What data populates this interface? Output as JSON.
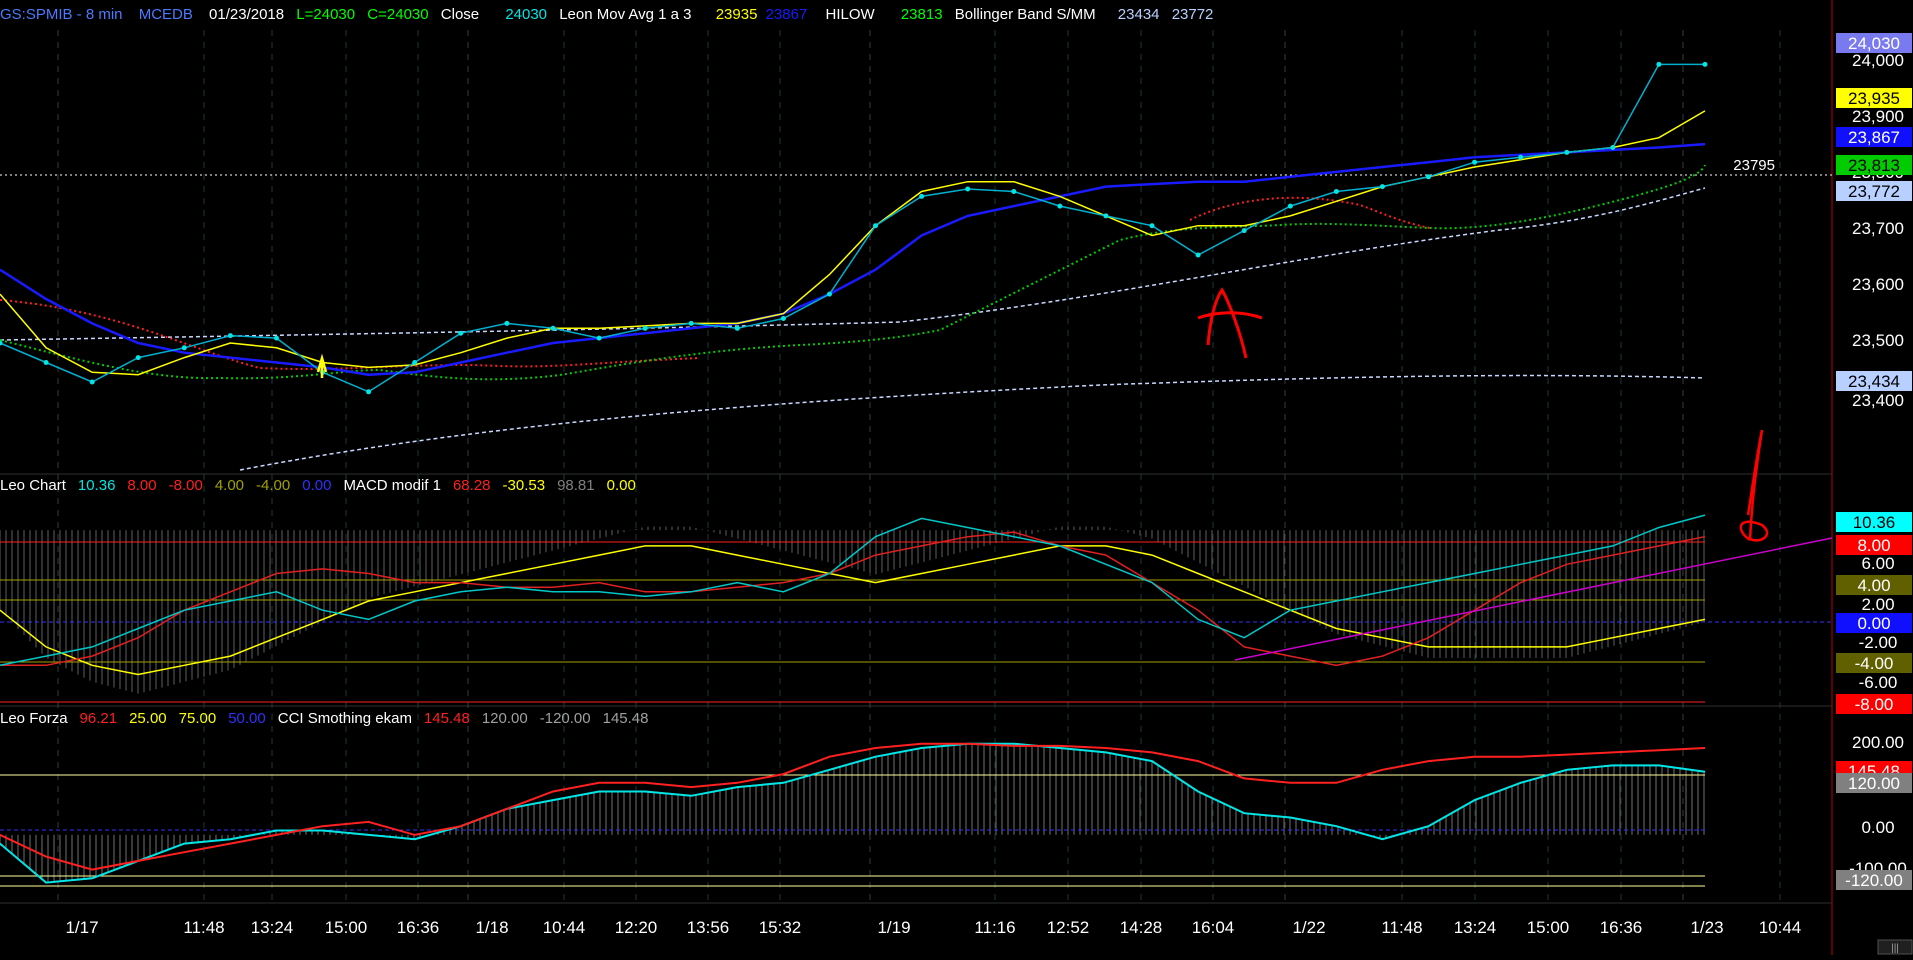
{
  "header": {
    "symbol": "GS:SPMIB - 8 min",
    "source": "MCEDB",
    "date": "01/23/2018",
    "low_label": "L=24030",
    "close_label": "C=24030",
    "close_word": "Close",
    "close_value": "24030",
    "mov_avg_name": "Leon Mov Avg 1 a 3",
    "mov_avg_v1": "23935",
    "mov_avg_v2": "23867",
    "hilow_name": "HILOW",
    "hilow_value": "23813",
    "bb_name": "Bollinger Band S/MM",
    "bb_v1": "23434",
    "bb_v2": "23772"
  },
  "price_axis": {
    "ticks": [
      "24,000",
      "23,900",
      "23,800",
      "23,700",
      "23,600",
      "23,500",
      "23,400"
    ],
    "badges": [
      {
        "text": "24,030",
        "bg": "#7a7af0",
        "fg": "#ffffff"
      },
      {
        "text": "23,935",
        "bg": "#ffff00",
        "fg": "#000000"
      },
      {
        "text": "23,867",
        "bg": "#1010ff",
        "fg": "#ffffff"
      },
      {
        "text": "23,813",
        "bg": "#00cc00",
        "fg": "#000000"
      },
      {
        "text": "23,772",
        "bg": "#b8d0ff",
        "fg": "#000000"
      },
      {
        "text": "23,434",
        "bg": "#b8d0ff",
        "fg": "#000000"
      }
    ],
    "hline_label": "23795"
  },
  "macd_panel": {
    "legend": [
      {
        "text": "Leo Chart",
        "color": "#ffffff"
      },
      {
        "text": "10.36",
        "color": "#00e5e5"
      },
      {
        "text": "8.00",
        "color": "#ff2020"
      },
      {
        "text": "-8.00",
        "color": "#ff2020"
      },
      {
        "text": "4.00",
        "color": "#a0a000"
      },
      {
        "text": "-4.00",
        "color": "#a0a000"
      },
      {
        "text": "0.00",
        "color": "#3030ff"
      },
      {
        "text": "MACD modif 1",
        "color": "#ffffff"
      },
      {
        "text": "68.28",
        "color": "#ff2020"
      },
      {
        "text": "-30.53",
        "color": "#ffff00"
      },
      {
        "text": "98.81",
        "color": "#808080"
      },
      {
        "text": "0.00",
        "color": "#ffff00"
      }
    ],
    "ticks": [
      "6.00",
      "2.00",
      "-2.00",
      "-6.00"
    ],
    "badges": [
      {
        "text": "10.36",
        "bg": "#00ffff",
        "fg": "#000000"
      },
      {
        "text": "8.00",
        "bg": "#ff0000",
        "fg": "#ffffff"
      },
      {
        "text": "4.00",
        "bg": "#606000",
        "fg": "#ffffff"
      },
      {
        "text": "0.00",
        "bg": "#1010ff",
        "fg": "#ffffff"
      },
      {
        "text": "-4.00",
        "bg": "#606000",
        "fg": "#ffffff"
      },
      {
        "text": "-8.00",
        "bg": "#ff0000",
        "fg": "#ffffff"
      }
    ]
  },
  "cci_panel": {
    "legend": [
      {
        "text": "Leo Forza",
        "color": "#ffffff"
      },
      {
        "text": "96.21",
        "color": "#ff2020"
      },
      {
        "text": "25.00",
        "color": "#ffff00"
      },
      {
        "text": "75.00",
        "color": "#ffff00"
      },
      {
        "text": "50.00",
        "color": "#3030ff"
      },
      {
        "text": "CCI Smothing ekam",
        "color": "#ffffff"
      },
      {
        "text": "145.48",
        "color": "#ff2020"
      },
      {
        "text": "120.00",
        "color": "#a0a0a0"
      },
      {
        "text": "-120.00",
        "color": "#a0a0a0"
      },
      {
        "text": "145.48",
        "color": "#a0a0a0"
      }
    ],
    "ticks": [
      "200.00",
      "0.00",
      "-100.00"
    ],
    "badges": [
      {
        "text": "145.48",
        "bg": "#ff0000",
        "fg": "#ffffff"
      },
      {
        "text": "120.00",
        "bg": "#808080",
        "fg": "#ffffff"
      },
      {
        "text": "-120.00",
        "bg": "#808080",
        "fg": "#ffffff"
      }
    ]
  },
  "time_axis": {
    "labels": [
      "1/17",
      "11:48",
      "13:24",
      "15:00",
      "16:36",
      "1/18",
      "10:44",
      "12:20",
      "13:56",
      "15:32",
      "1/19",
      "11:16",
      "12:52",
      "14:28",
      "16:04",
      "1/22",
      "11:48",
      "13:24",
      "15:00",
      "16:36",
      "1/23",
      "10:44"
    ]
  },
  "annotation": {
    "text": "A"
  },
  "colors": {
    "close": "#00e5e5",
    "ma_fast": "#ffff00",
    "ma_slow": "#1a1aff",
    "hilow": "#00cc00",
    "red_dots": "#ff2020",
    "bollinger": "#c8d8ff",
    "macd_red": "#e02020",
    "trendline": "#cc00cc"
  },
  "chart_data": [
    {
      "type": "line",
      "panel": "price",
      "title": "",
      "x": [
        "1/17 09:00",
        "1/17 10:00",
        "1/17 11:00",
        "1/17 12:00",
        "1/17 13:00",
        "1/17 14:00",
        "1/17 15:00",
        "1/17 16:00",
        "1/17 17:00",
        "1/18 09:00",
        "1/18 10:00",
        "1/18 11:00",
        "1/18 12:00",
        "1/18 13:00",
        "1/18 14:00",
        "1/18 15:00",
        "1/18 16:00",
        "1/18 17:00",
        "1/19 09:00",
        "1/19 10:00",
        "1/19 11:00",
        "1/19 12:00",
        "1/19 13:00",
        "1/19 14:00",
        "1/19 15:00",
        "1/19 16:00",
        "1/19 17:00",
        "1/22 09:00",
        "1/22 10:00",
        "1/22 11:00",
        "1/22 12:00",
        "1/22 13:00",
        "1/22 14:00",
        "1/22 15:00",
        "1/22 16:00",
        "1/22 17:00",
        "1/23 09:00",
        "1/23 09:30"
      ],
      "ylim": [
        23200,
        24080
      ],
      "series": [
        {
          "name": "Close",
          "values": [
            23460,
            23420,
            23380,
            23430,
            23450,
            23475,
            23470,
            23400,
            23360,
            23420,
            23480,
            23500,
            23490,
            23470,
            23490,
            23500,
            23490,
            23510,
            23560,
            23700,
            23760,
            23775,
            23770,
            23740,
            23720,
            23700,
            23640,
            23690,
            23740,
            23770,
            23780,
            23800,
            23830,
            23840,
            23850,
            23860,
            24030,
            24030
          ]
        },
        {
          "name": "Leon Mov Avg 1 a 3",
          "values": [
            23560,
            23450,
            23400,
            23395,
            23430,
            23460,
            23450,
            23420,
            23410,
            23415,
            23440,
            23470,
            23490,
            23490,
            23495,
            23500,
            23500,
            23520,
            23600,
            23700,
            23770,
            23790,
            23790,
            23760,
            23720,
            23680,
            23700,
            23700,
            23720,
            23750,
            23780,
            23800,
            23820,
            23835,
            23850,
            23860,
            23880,
            23935
          ]
        },
        {
          "name": "",
          "values": [
            23610,
            23550,
            23500,
            23460,
            23440,
            23430,
            23420,
            23410,
            23395,
            23400,
            23420,
            23440,
            23460,
            23470,
            23480,
            23490,
            23500,
            23520,
            23560,
            23610,
            23680,
            23720,
            23740,
            23760,
            23780,
            23785,
            23790,
            23790,
            23800,
            23810,
            23820,
            23830,
            23840,
            23845,
            23850,
            23855,
            23860,
            23867
          ]
        },
        {
          "name": "HILOW",
          "values": [
            23560,
            23520,
            23480,
            23450,
            23430,
            23420,
            23420,
            23425,
            23430,
            23440,
            23450,
            23460,
            23470,
            23480,
            23485,
            23490,
            23495,
            23500,
            23520,
            23560,
            23610,
            23640,
            23660,
            23690,
            23700,
            23710,
            23720,
            23730,
            23740,
            23750,
            23760,
            23770,
            23780,
            23790,
            23800,
            23805,
            23810,
            23813
          ]
        }
      ]
    },
    {
      "type": "line",
      "panel": "macd",
      "title": "",
      "ylim": [
        -10,
        12
      ],
      "series": [
        {
          "name": "",
          "values": [
            -6,
            -5,
            -4,
            -2,
            0,
            1,
            2,
            0,
            -1,
            1,
            2,
            2.5,
            2,
            2,
            1.5,
            2,
            3,
            2,
            4,
            8,
            10,
            9,
            8,
            7,
            5,
            3,
            -1,
            -3,
            0,
            1,
            2,
            3,
            4,
            5,
            6,
            7,
            9,
            10.36
          ]
        },
        {
          "name": "",
          "values": [
            -6,
            -6,
            -5,
            -3,
            0,
            2,
            4,
            4.5,
            4,
            3,
            3,
            2.5,
            2.5,
            3,
            2,
            2,
            2.5,
            3,
            4,
            6,
            7,
            8,
            8.5,
            7,
            6,
            3,
            0,
            -4,
            -5,
            -6,
            -5,
            -3,
            0,
            3,
            5,
            6,
            7,
            8
          ]
        },
        {
          "name": "",
          "values": [
            0,
            -4,
            -6,
            -7,
            -6,
            -5,
            -3,
            -1,
            1,
            2,
            3,
            4,
            5,
            6,
            7,
            7,
            6,
            5,
            4,
            3,
            4,
            5,
            6,
            7,
            7,
            6,
            4,
            2,
            0,
            -2,
            -3,
            -4,
            -4,
            -4,
            -4,
            -3,
            -2,
            -1
          ]
        }
      ]
    },
    {
      "type": "line",
      "panel": "cci",
      "title": "",
      "ylim": [
        -150,
        260
      ],
      "series": [
        {
          "name": "",
          "values": [
            -20,
            -110,
            -100,
            -60,
            -20,
            -10,
            10,
            10,
            0,
            -10,
            20,
            60,
            80,
            100,
            100,
            90,
            110,
            120,
            150,
            180,
            200,
            210,
            210,
            200,
            190,
            170,
            100,
            50,
            40,
            20,
            -10,
            20,
            80,
            120,
            150,
            160,
            160,
            145.48
          ]
        },
        {
          "name": "",
          "values": [
            -20,
            -110,
            -100,
            -60,
            -20,
            -10,
            10,
            10,
            0,
            -10,
            20,
            60,
            80,
            100,
            100,
            90,
            110,
            120,
            150,
            180,
            200,
            210,
            210,
            200,
            190,
            170,
            100,
            50,
            40,
            20,
            -10,
            20,
            80,
            120,
            150,
            160,
            160,
            145.48
          ]
        },
        {
          "name": "",
          "values": [
            0,
            -50,
            -80,
            -60,
            -40,
            -20,
            0,
            20,
            30,
            0,
            20,
            60,
            100,
            120,
            120,
            110,
            120,
            140,
            180,
            200,
            210,
            210,
            205,
            205,
            200,
            190,
            170,
            130,
            120,
            120,
            150,
            170,
            180,
            180,
            185,
            190,
            195,
            200
          ]
        }
      ]
    }
  ]
}
